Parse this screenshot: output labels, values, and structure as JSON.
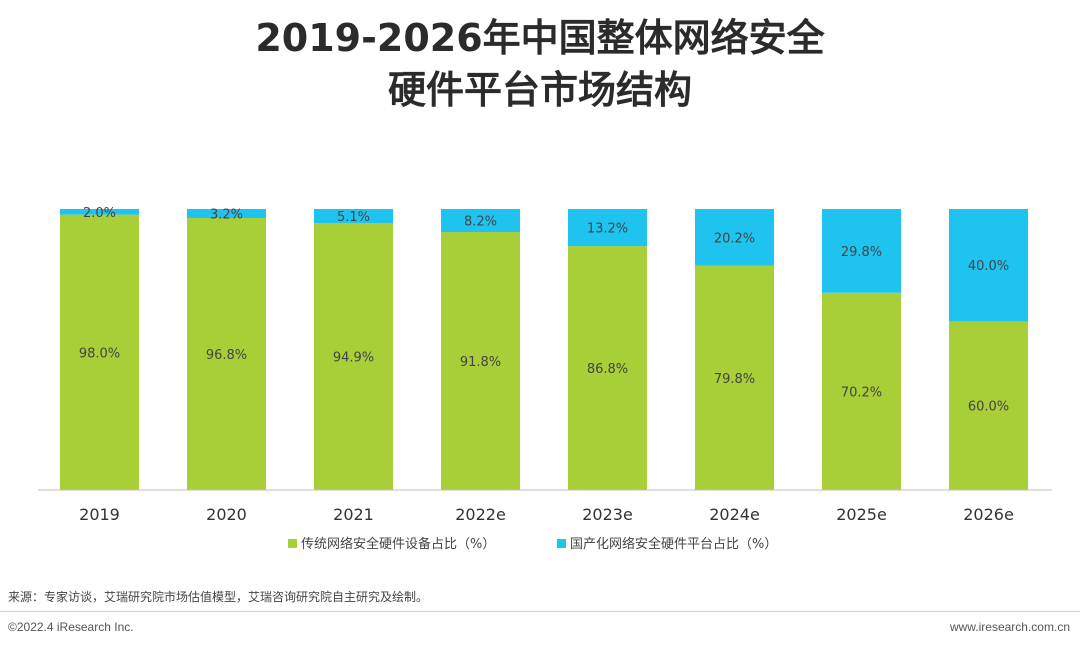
{
  "title_line1": "2019-2026年中国整体网络安全",
  "title_line2": "硬件平台市场结构",
  "chart_data": {
    "type": "bar",
    "stacked": true,
    "categories": [
      "2019",
      "2020",
      "2021",
      "2022e",
      "2023e",
      "2024e",
      "2025e",
      "2026e"
    ],
    "series": [
      {
        "name": "传统网络安全硬件设备占比（%）",
        "color": "#a9cf38",
        "values": [
          98.0,
          96.8,
          94.9,
          91.8,
          86.8,
          79.8,
          70.2,
          60.0
        ],
        "labels": [
          "98.0%",
          "96.8%",
          "94.9%",
          "91.8%",
          "86.8%",
          "79.8%",
          "70.2%",
          "60.0%"
        ]
      },
      {
        "name": "国产化网络安全硬件平台占比（%）",
        "color": "#1ec4ef",
        "values": [
          2.0,
          3.2,
          5.1,
          8.2,
          13.2,
          20.2,
          29.8,
          40.0
        ],
        "labels": [
          "2.0%",
          "3.2%",
          "5.1%",
          "8.2%",
          "13.2%",
          "20.2%",
          "29.8%",
          "40.0%"
        ]
      }
    ],
    "ylim": [
      0,
      100
    ],
    "grid": false,
    "legend": "bottom-center"
  },
  "source": "来源：专家访谈，艾瑞研究院市场估值模型，艾瑞咨询研究院自主研究及绘制。",
  "copyright": "©2022.4 iResearch Inc.",
  "website": "www.iresearch.com.cn"
}
